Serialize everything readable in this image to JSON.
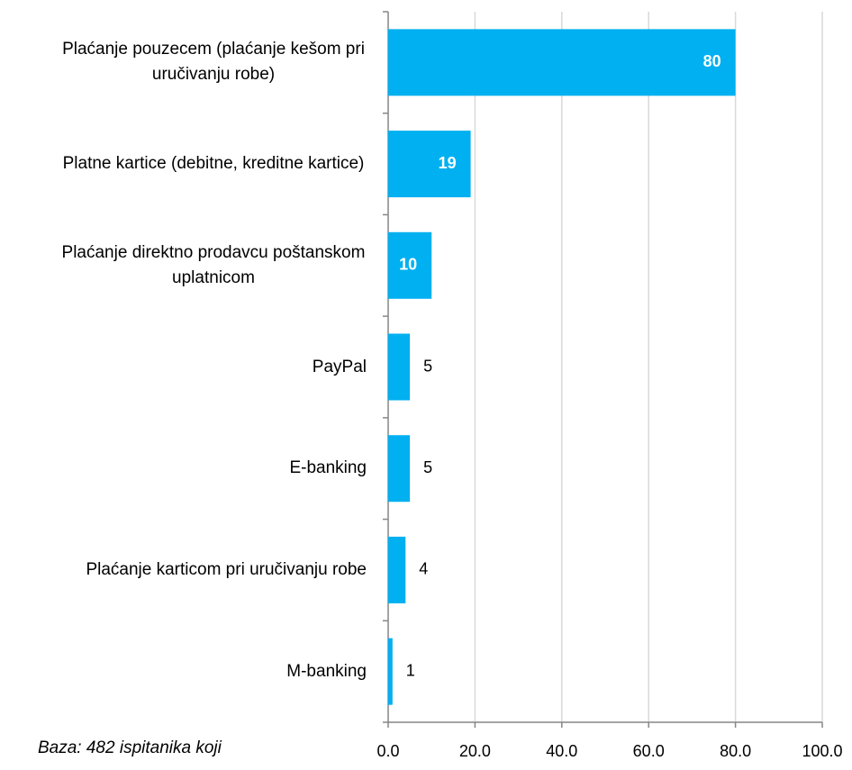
{
  "chart_data": {
    "type": "barh",
    "categories": [
      "Plaćanje pouzecem (plaćanje kešom pri uručivanju robe)",
      "Platne kartice (debitne, kreditne kartice)",
      "Plaćanje direktno prodavcu poštanskom uplatnicom",
      "PayPal",
      "E-banking",
      "Plaćanje karticom pri uručivanju robe",
      "M-banking"
    ],
    "values": [
      80,
      19,
      10,
      5,
      5,
      4,
      1
    ],
    "color": "#00b0f0",
    "xlim": [
      0,
      100
    ],
    "xticks": [
      {
        "value": 0,
        "label": "0.0"
      },
      {
        "value": 20,
        "label": "20.0"
      },
      {
        "value": 40,
        "label": "40.0"
      },
      {
        "value": 60,
        "label": "60.0"
      },
      {
        "value": 80,
        "label": "80.0"
      },
      {
        "value": 100,
        "label": "100.0"
      }
    ],
    "grid": true,
    "note": "Baza: 482 ispitanika koji"
  }
}
